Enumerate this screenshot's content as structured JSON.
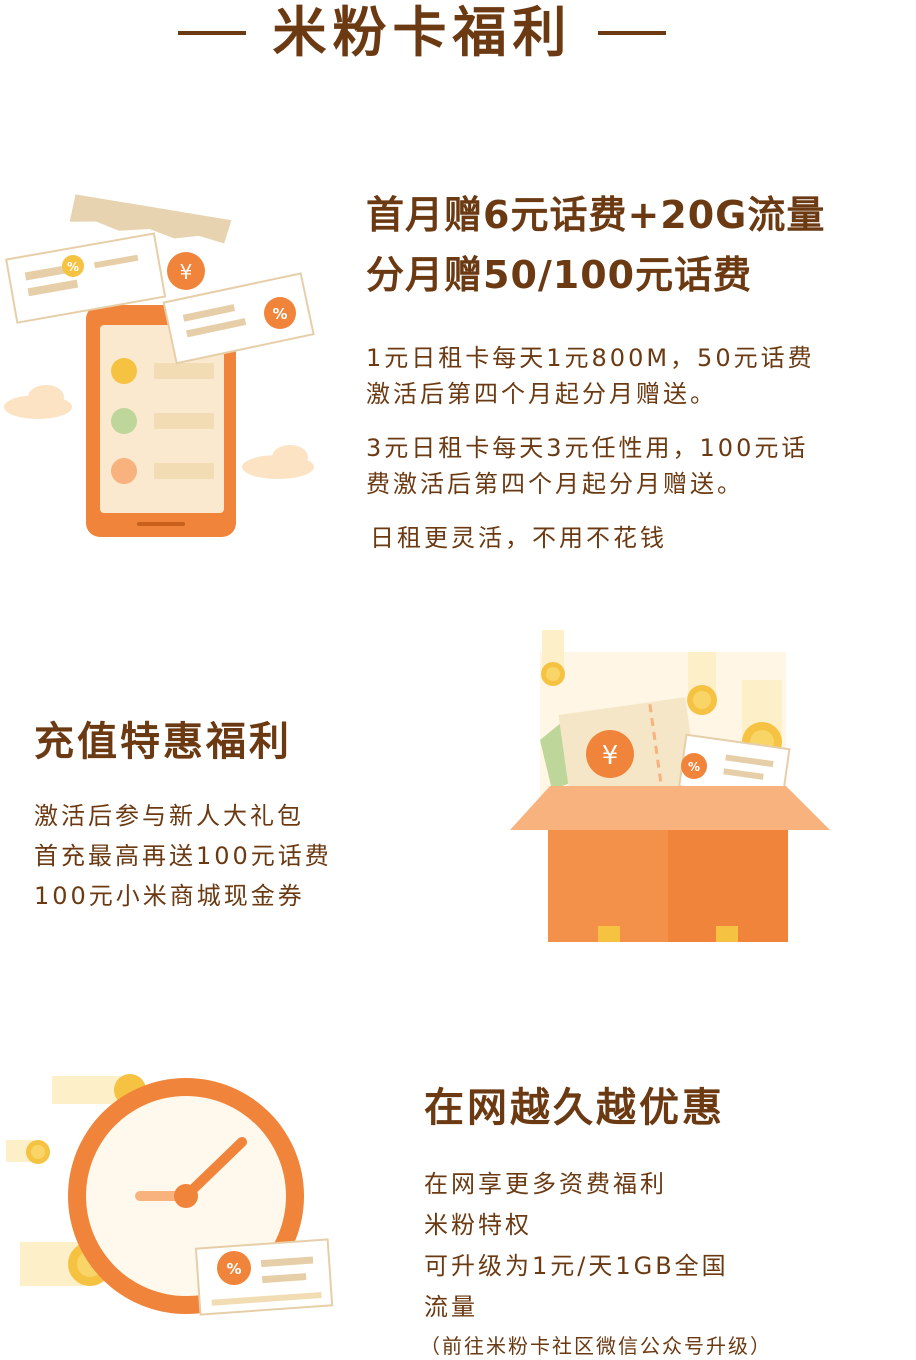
{
  "header": {
    "title": "米粉卡福利"
  },
  "section1": {
    "title_line1": "首月赠6元话费+20G流量",
    "title_line2": "分月赠50/100元话费",
    "para1_line1": "1元日租卡每天1元800M，50元话费",
    "para1_line2": "激活后第四个月起分月赠送。",
    "para2_line1": "3元日租卡每天3元任性用，100元话",
    "para2_line2": "费激活后第四个月起分月赠送。",
    "para3": "日租更灵活，不用不花钱",
    "icons": {
      "coupon_yuan": "¥",
      "coupon_percent": "%"
    }
  },
  "section2": {
    "title": "充值特惠福利",
    "line1": "激活后参与新人大礼包",
    "line2": "首充最高再送100元话费",
    "line3": "100元小米商城现金券",
    "icons": {
      "coupon_yuan": "¥",
      "coupon_percent": "%"
    }
  },
  "section3": {
    "title": "在网越久越优惠",
    "line1": "在网享更多资费福利",
    "line2": "米粉特权",
    "line3": "可升级为1元/天1GB全国",
    "line4": "流量",
    "note": "（前往米粉卡社区微信公众号升级）",
    "icons": {
      "coupon_percent": "%"
    }
  },
  "colors": {
    "brown_text": "#6b3a12",
    "orange": "#f0843a",
    "light_orange": "#f7b27d",
    "cream": "#f5e6c8",
    "yellow": "#f5c242",
    "green": "#bed69a"
  }
}
